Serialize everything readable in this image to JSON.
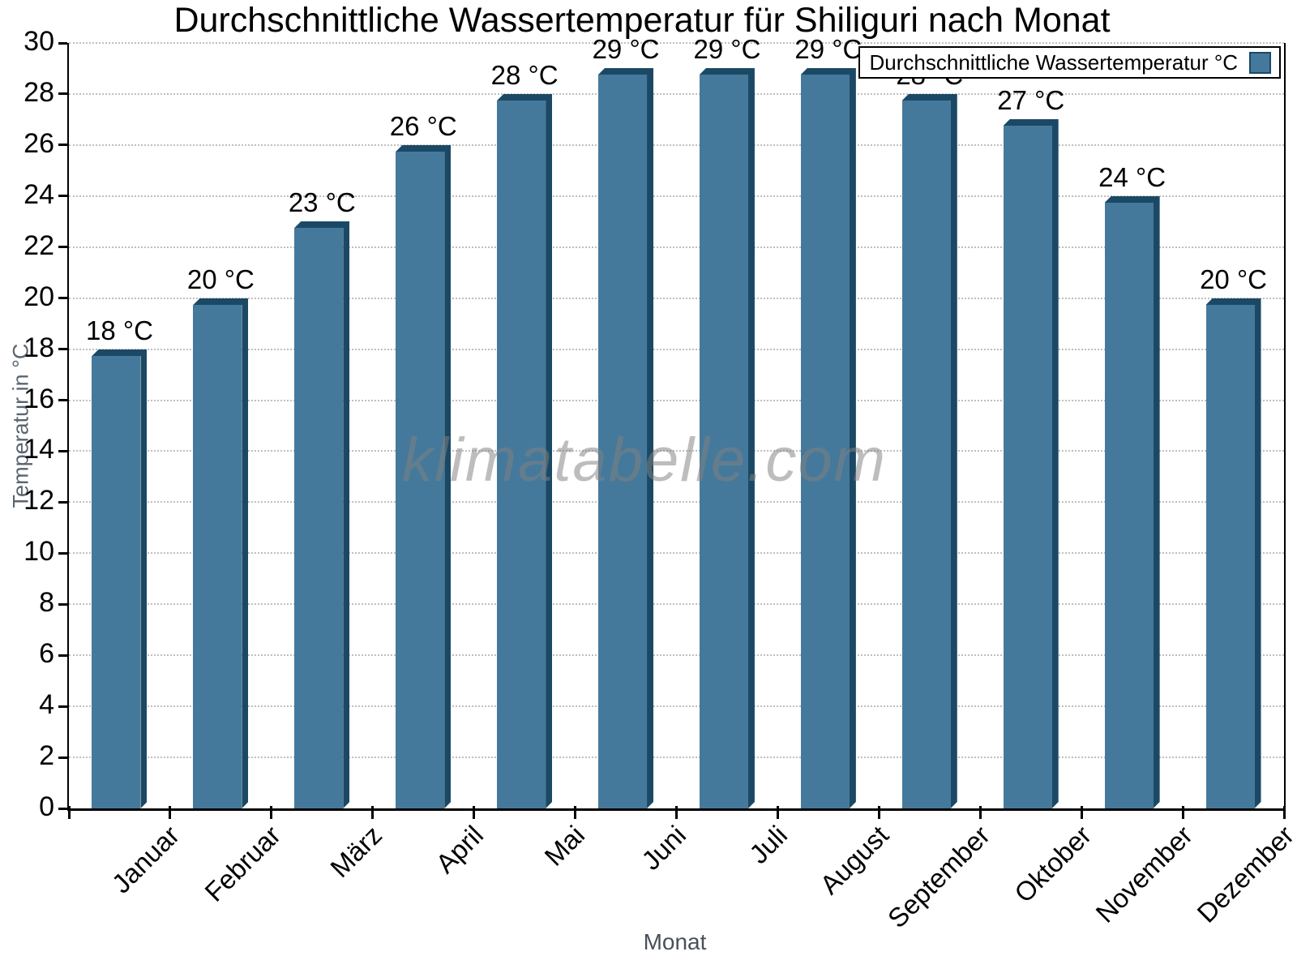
{
  "title": "Durchschnittliche Wassertemperatur für Shiliguri nach Monat",
  "watermark": "klimatabelle.com",
  "legend": {
    "label": "Durchschnittliche Wassertemperatur °C"
  },
  "chart_data": {
    "type": "bar",
    "title": "Durchschnittliche Wassertemperatur für Shiliguri nach Monat",
    "xlabel": "Monat",
    "ylabel": "Temperatur in °C",
    "categories": [
      "Januar",
      "Februar",
      "März",
      "April",
      "Mai",
      "Juni",
      "Juli",
      "August",
      "September",
      "Oktober",
      "November",
      "Dezember"
    ],
    "values": [
      18,
      20,
      23,
      26,
      28,
      29,
      29,
      29,
      28,
      27,
      24,
      20
    ],
    "bar_label_suffix": " °C",
    "ylim": [
      0,
      30
    ],
    "ytick_step": 2,
    "grid": "horizontal dotted",
    "legend_label": "Durchschnittliche Wassertemperatur °C",
    "legend_position": "top-right",
    "colors": {
      "bar_face": "#45799b",
      "bar_edge": "#1b4965",
      "grid": "#bfbfbf",
      "axis": "#000000",
      "axis_title_text": "#5a6470",
      "watermark_text": "#808080"
    }
  }
}
